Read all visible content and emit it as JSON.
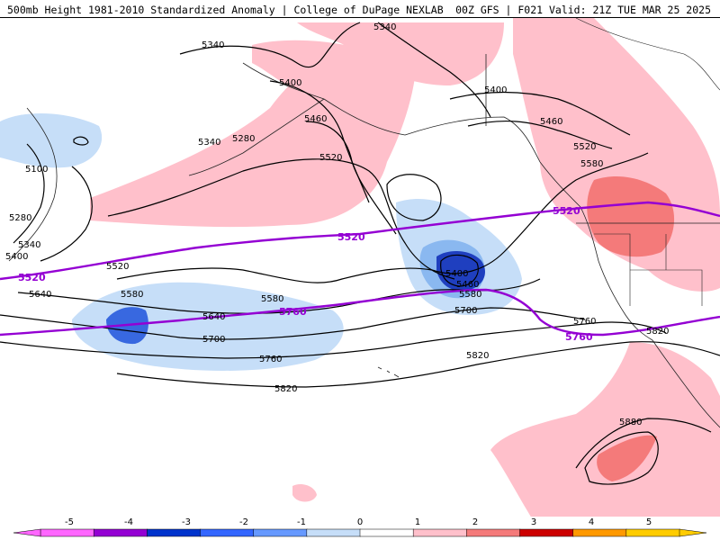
{
  "header": {
    "left_title": "500mb Height 1981-2010 Standardized Anomaly | College of DuPage NEXLAB",
    "right_title": "00Z GFS | F021 Valid: 21Z TUE MAR 25 2025"
  },
  "map": {
    "contour_labels": [
      "5340",
      "5400",
      "5460",
      "5520",
      "5580",
      "5640",
      "5700",
      "5760",
      "5820",
      "5880",
      "5100",
      "5280"
    ],
    "highlight_labels": [
      "5520",
      "5760"
    ],
    "highlight_color": "#9400d3",
    "anomaly_colors": {
      "pos1": "#ffc0cb",
      "pos2": "#f47a7a",
      "neg1": "#c6def8",
      "neg2": "#8ab8f0",
      "neg3": "#3868e0",
      "neg4": "#1f3fbf"
    }
  },
  "colorbar": {
    "ticks": [
      "-5",
      "-4",
      "-3",
      "-2",
      "-1",
      "0",
      "1",
      "2",
      "3",
      "4",
      "5"
    ],
    "colors": [
      "#ff66ff",
      "#9400d3",
      "#0033cc",
      "#3366ff",
      "#6699ff",
      "#c6def8",
      "#ffffff",
      "#ffc0cb",
      "#f47a7a",
      "#cc0000",
      "#ff9900",
      "#ffcc00"
    ]
  }
}
